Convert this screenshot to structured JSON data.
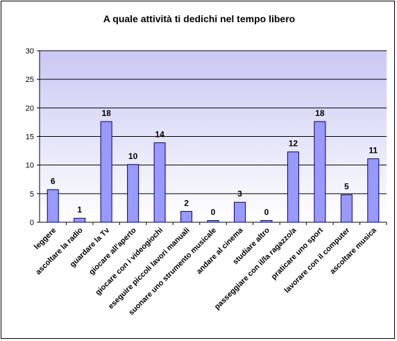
{
  "chart_data": {
    "type": "bar",
    "title": "A  quale attività ti dedichi nel tempo libero",
    "xlabel": "",
    "ylabel": "",
    "ylim": [
      0,
      30
    ],
    "yticks": [
      0,
      5,
      10,
      15,
      20,
      25,
      30
    ],
    "grid": true,
    "legend": "none",
    "colors": {
      "bar_fill": "#9999ff",
      "bar_stroke": "#000066",
      "plot_top": "#c8c8f4",
      "plot_bottom": "#ffffff",
      "gridline": "#000000"
    },
    "categories": [
      "leggere",
      "ascoltare la radio",
      "guardare la Tv",
      "giocare all'aperto",
      "giocare con i videogiochi",
      "eseguire piccoli lavori manuali",
      "suonare uno strumento musicale",
      "andare al cinema",
      "studiare altro",
      "passeggiare con il/la ragazzo/a",
      "praticare uno sport",
      "lavorare con il computer",
      "ascoltare musica"
    ],
    "values": [
      5.7,
      0.7,
      17.6,
      10.1,
      13.9,
      1.9,
      0.3,
      3.5,
      0.3,
      12.3,
      17.6,
      4.8,
      11.1
    ],
    "data_labels": [
      "6",
      "1",
      "18",
      "10",
      "14",
      "2",
      "0",
      "3",
      "0",
      "12",
      "18",
      "5",
      "11"
    ]
  }
}
